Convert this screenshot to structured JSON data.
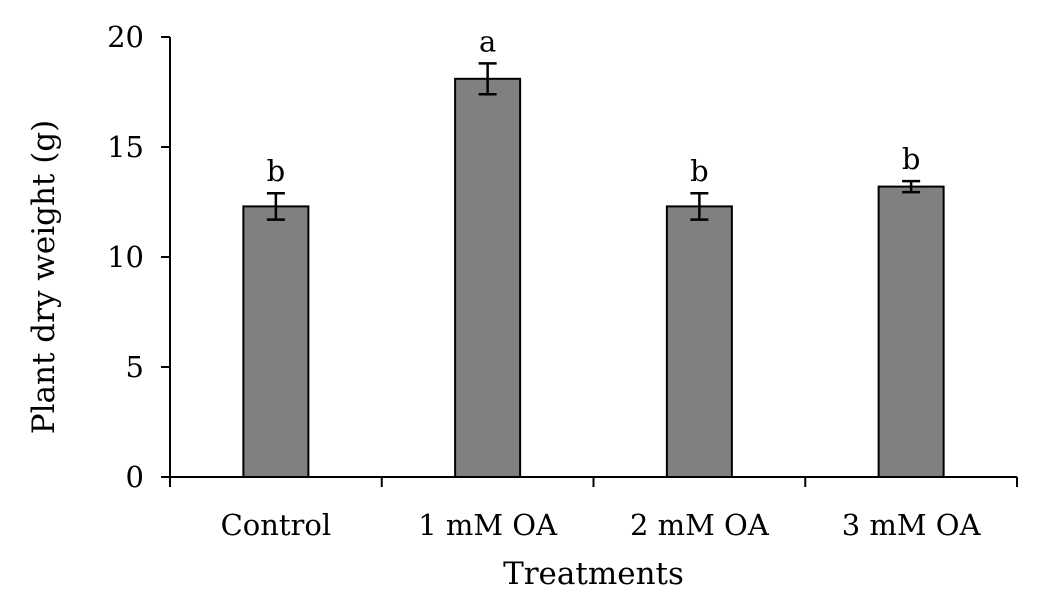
{
  "chart_data": {
    "type": "bar",
    "title": "",
    "xlabel": "Treatments",
    "ylabel": "Plant dry weight (g)",
    "ylim": [
      0,
      20
    ],
    "yticks": [
      0,
      5,
      10,
      15,
      20
    ],
    "grid": false,
    "categories": [
      "Control",
      "1 mM OA",
      "2 mM OA",
      "3 mM OA"
    ],
    "values": [
      12.3,
      18.1,
      12.3,
      13.2
    ],
    "errors": [
      0.6,
      0.7,
      0.6,
      0.25
    ],
    "significance": [
      "b",
      "a",
      "b",
      "b"
    ],
    "colors": {
      "bar_fill": "#808080",
      "bar_stroke": "#000000",
      "axis": "#000000",
      "text": "#000000"
    }
  }
}
